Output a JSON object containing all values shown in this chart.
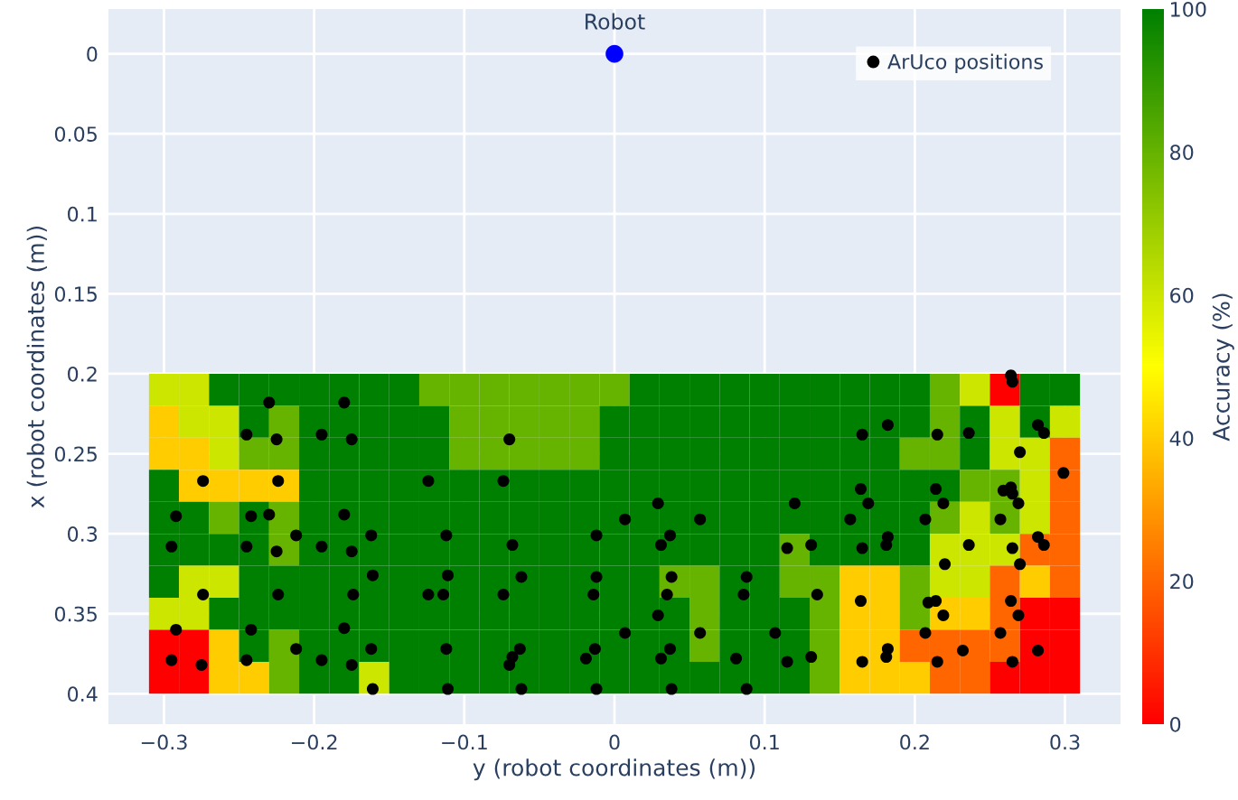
{
  "chart_data": {
    "type": "heatmap",
    "xlabel": "y (robot coordinates (m))",
    "ylabel": "x (robot coordinates (m))",
    "clabel": "Accuracy (%)",
    "xlim": [
      -0.337,
      0.337
    ],
    "ylim": [
      0.419,
      -0.028
    ],
    "xticks": [
      {
        "value": -0.3,
        "label": "−0.3"
      },
      {
        "value": -0.2,
        "label": "−0.2"
      },
      {
        "value": -0.1,
        "label": "−0.1"
      },
      0,
      0.1,
      0.2,
      0.3
    ],
    "yticks": [
      0,
      0.05,
      0.1,
      0.15,
      0.2,
      0.25,
      0.3,
      0.35,
      0.4
    ],
    "grid": true,
    "legend": "top right",
    "clim": [
      0,
      100
    ],
    "cticks": [
      0,
      20,
      40,
      60,
      80,
      100
    ],
    "colors": [
      "#ff0000",
      "#ffff00",
      "#008000"
    ],
    "x": [
      -0.3,
      -0.28,
      -0.26,
      -0.24,
      -0.22,
      -0.2,
      -0.18,
      -0.16,
      -0.14,
      -0.12,
      -0.1,
      -0.08,
      -0.06,
      -0.04,
      -0.02,
      0,
      0.02,
      0.04,
      0.06,
      0.08,
      0.1,
      0.12,
      0.14,
      0.16,
      0.18,
      0.2,
      0.22,
      0.24,
      0.26,
      0.28,
      0.3
    ],
    "y": [
      0.21,
      0.23,
      0.25,
      0.27,
      0.29,
      0.31,
      0.33,
      0.35,
      0.37,
      0.39
    ],
    "cells": [
      [
        60,
        60,
        100,
        100,
        100,
        100,
        100,
        100,
        100,
        80,
        80,
        80,
        80,
        80,
        80,
        80,
        100,
        100,
        100,
        100,
        100,
        100,
        100,
        100,
        100,
        100,
        80,
        60,
        0,
        100,
        100
      ],
      [
        40,
        60,
        60,
        100,
        80,
        100,
        100,
        100,
        100,
        100,
        80,
        80,
        80,
        80,
        80,
        100,
        100,
        100,
        100,
        100,
        100,
        100,
        100,
        100,
        100,
        100,
        80,
        100,
        60,
        100,
        60
      ],
      [
        40,
        40,
        60,
        80,
        80,
        100,
        100,
        100,
        100,
        100,
        80,
        80,
        80,
        80,
        80,
        100,
        100,
        100,
        100,
        100,
        100,
        100,
        100,
        100,
        100,
        80,
        80,
        100,
        60,
        60,
        20
      ],
      [
        100,
        40,
        40,
        40,
        40,
        100,
        100,
        100,
        100,
        100,
        100,
        100,
        100,
        100,
        100,
        100,
        100,
        100,
        100,
        100,
        100,
        100,
        100,
        100,
        100,
        100,
        100,
        80,
        80,
        60,
        20
      ],
      [
        100,
        100,
        80,
        100,
        80,
        100,
        100,
        100,
        100,
        100,
        100,
        100,
        100,
        100,
        100,
        100,
        100,
        100,
        100,
        100,
        100,
        100,
        100,
        100,
        100,
        100,
        80,
        60,
        80,
        60,
        20
      ],
      [
        100,
        100,
        100,
        100,
        80,
        100,
        100,
        100,
        100,
        100,
        100,
        100,
        100,
        100,
        100,
        100,
        100,
        100,
        100,
        100,
        100,
        80,
        100,
        100,
        100,
        100,
        60,
        60,
        60,
        20,
        20
      ],
      [
        100,
        60,
        60,
        100,
        100,
        100,
        100,
        100,
        100,
        100,
        100,
        100,
        100,
        100,
        100,
        100,
        100,
        80,
        80,
        100,
        100,
        80,
        80,
        40,
        40,
        80,
        60,
        60,
        20,
        40,
        20
      ],
      [
        60,
        60,
        100,
        100,
        100,
        100,
        100,
        100,
        100,
        100,
        100,
        100,
        100,
        100,
        100,
        100,
        100,
        100,
        80,
        100,
        100,
        100,
        80,
        40,
        40,
        80,
        40,
        40,
        20,
        0,
        0
      ],
      [
        0,
        0,
        40,
        100,
        80,
        100,
        100,
        100,
        100,
        100,
        100,
        100,
        100,
        100,
        100,
        100,
        100,
        100,
        80,
        100,
        100,
        100,
        80,
        40,
        40,
        20,
        20,
        20,
        20,
        0,
        0
      ],
      [
        0,
        0,
        40,
        40,
        80,
        100,
        100,
        60,
        100,
        100,
        100,
        100,
        100,
        100,
        100,
        100,
        100,
        100,
        100,
        100,
        100,
        100,
        80,
        40,
        40,
        40,
        20,
        20,
        0,
        0,
        0
      ]
    ],
    "series": [
      {
        "type": "scatter",
        "name": "ArUco positions",
        "color": "#000000",
        "x": [
          -0.23,
          -0.18,
          -0.245,
          -0.225,
          -0.195,
          -0.175,
          -0.274,
          -0.224,
          -0.124,
          -0.292,
          -0.242,
          -0.23,
          -0.18,
          -0.212,
          -0.162,
          -0.112,
          -0.295,
          -0.245,
          -0.225,
          -0.195,
          -0.175,
          -0.161,
          -0.111,
          -0.274,
          -0.224,
          -0.174,
          -0.124,
          -0.114,
          -0.292,
          -0.242,
          -0.18,
          -0.212,
          -0.162,
          -0.112,
          -0.295,
          -0.275,
          -0.245,
          -0.195,
          -0.175,
          -0.161,
          -0.111,
          -0.07,
          -0.074,
          0.029,
          0.007,
          0.057,
          -0.012,
          0.037,
          -0.068,
          0.031,
          -0.062,
          -0.012,
          0.038,
          0.088,
          -0.074,
          -0.014,
          0.035,
          0.086,
          0.029,
          0.007,
          0.057,
          0.107,
          -0.063,
          -0.013,
          0.037,
          -0.068,
          -0.07,
          -0.019,
          0.031,
          0.081,
          0.115,
          -0.062,
          -0.012,
          0.038,
          0.088,
          0.264,
          0.265,
          0.165,
          0.182,
          0.215,
          0.236,
          0.282,
          0.286,
          0.27,
          0.299,
          0.12,
          0.164,
          0.169,
          0.214,
          0.219,
          0.259,
          0.264,
          0.265,
          0.269,
          0.157,
          0.207,
          0.257,
          0.115,
          0.131,
          0.165,
          0.181,
          0.182,
          0.236,
          0.265,
          0.282,
          0.286,
          0.22,
          0.27,
          0.135,
          0.164,
          0.209,
          0.214,
          0.264,
          0.219,
          0.269,
          0.207,
          0.257,
          0.131,
          0.165,
          0.181,
          0.182,
          0.215,
          0.232,
          0.265,
          0.282
        ],
        "values": [
          0.218,
          0.218,
          0.238,
          0.241,
          0.238,
          0.241,
          0.267,
          0.267,
          0.267,
          0.289,
          0.289,
          0.288,
          0.288,
          0.301,
          0.301,
          0.301,
          0.308,
          0.308,
          0.311,
          0.308,
          0.311,
          0.326,
          0.326,
          0.338,
          0.338,
          0.338,
          0.338,
          0.338,
          0.36,
          0.36,
          0.359,
          0.372,
          0.372,
          0.372,
          0.379,
          0.382,
          0.379,
          0.379,
          0.382,
          0.397,
          0.397,
          0.241,
          0.267,
          0.281,
          0.291,
          0.291,
          0.301,
          0.301,
          0.307,
          0.307,
          0.327,
          0.327,
          0.327,
          0.327,
          0.338,
          0.338,
          0.338,
          0.338,
          0.351,
          0.362,
          0.362,
          0.362,
          0.372,
          0.372,
          0.372,
          0.377,
          0.382,
          0.378,
          0.378,
          0.378,
          0.38,
          0.397,
          0.397,
          0.397,
          0.397,
          0.201,
          0.205,
          0.238,
          0.232,
          0.238,
          0.237,
          0.232,
          0.237,
          0.249,
          0.262,
          0.281,
          0.272,
          0.281,
          0.272,
          0.281,
          0.273,
          0.271,
          0.275,
          0.281,
          0.291,
          0.291,
          0.291,
          0.309,
          0.307,
          0.309,
          0.307,
          0.302,
          0.307,
          0.309,
          0.302,
          0.307,
          0.319,
          0.319,
          0.338,
          0.342,
          0.343,
          0.342,
          0.342,
          0.351,
          0.351,
          0.362,
          0.362,
          0.377,
          0.38,
          0.377,
          0.372,
          0.38,
          0.373,
          0.38,
          0.373
        ]
      },
      {
        "type": "scatter",
        "color": "#0000ff",
        "x": [
          0
        ],
        "values": [
          0
        ]
      }
    ],
    "annotations": [
      {
        "text": "Robot",
        "x": 0,
        "y": 0
      }
    ]
  }
}
